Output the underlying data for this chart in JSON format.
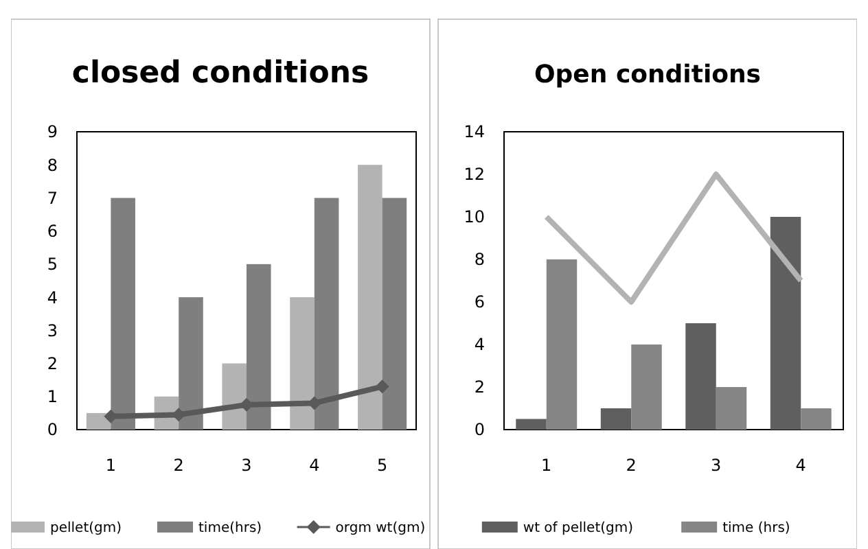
{
  "chart_data": [
    {
      "type": "bar",
      "title": "closed conditions",
      "categories": [
        "1",
        "2",
        "3",
        "4",
        "5"
      ],
      "ylim": [
        0,
        9
      ],
      "yticks": [
        0,
        1,
        2,
        3,
        4,
        5,
        6,
        7,
        8,
        9
      ],
      "grid": false,
      "legend": "bottom",
      "series": [
        {
          "name": "pellet(gm)",
          "color": "#b3b3b3",
          "values": [
            0.5,
            1,
            2,
            4,
            8
          ]
        },
        {
          "name": "time(hrs)",
          "color": "#7f7f7f",
          "values": [
            7,
            4,
            5,
            7,
            7
          ]
        },
        {
          "name": "orgm wt(gm)",
          "type": "line",
          "color": "#595959",
          "marker": "diamond",
          "values": [
            0.4,
            0.45,
            0.75,
            0.8,
            1.3
          ]
        }
      ]
    },
    {
      "type": "bar",
      "title": "Open  conditions",
      "categories": [
        "1",
        "2",
        "3",
        "4"
      ],
      "ylim": [
        0,
        14
      ],
      "yticks": [
        0,
        2,
        4,
        6,
        8,
        10,
        12,
        14
      ],
      "grid": false,
      "legend": "bottom",
      "series": [
        {
          "name": "wt of pellet(gm)",
          "color": "#5f5f5f",
          "values": [
            0.5,
            1,
            5,
            10
          ]
        },
        {
          "name": "time (hrs)",
          "color": "#858585",
          "values": [
            8,
            4,
            2,
            1
          ]
        },
        {
          "type": "line",
          "color": "#b3b3b3",
          "marker": "none",
          "values": [
            10,
            6,
            12,
            7
          ]
        }
      ]
    }
  ]
}
